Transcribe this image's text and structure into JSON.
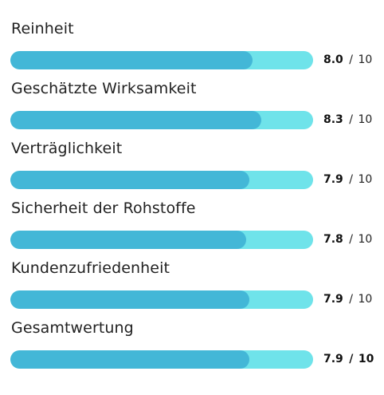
{
  "ratings": [
    {
      "label": "Reinheit",
      "value": "8.0",
      "level": 0.8
    },
    {
      "label": "Geschätzte Wirksamkeit",
      "value": "8.3",
      "level": 0.83
    },
    {
      "label": "Verträglichkeit",
      "value": "7.9",
      "level": 0.79
    },
    {
      "label": "Sicherheit der Rohstoffe",
      "value": "7.8",
      "level": 0.78
    },
    {
      "label": "Kundenzufriedenheit",
      "value": "7.9",
      "level": 0.79
    },
    {
      "label": "Gesamtwertung",
      "value": "7.9",
      "level": 0.79
    }
  ],
  "scale": {
    "separator": "/",
    "max": "10"
  },
  "colors": {
    "bar_fill": "#43b7d7",
    "bar_track": "#6fe3ea",
    "text": "#222222"
  }
}
